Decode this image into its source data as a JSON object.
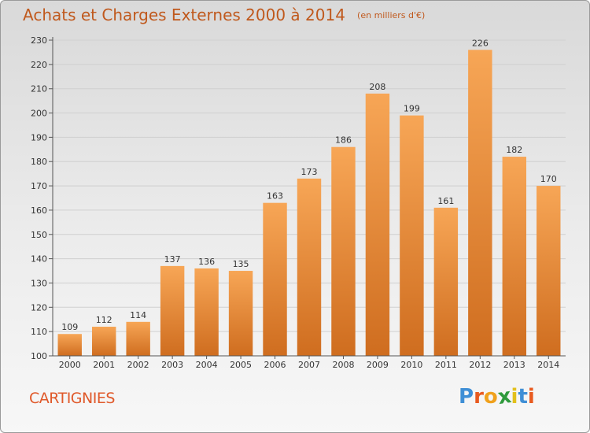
{
  "page": {
    "title": "Achats et Charges Externes 2000 à 2014",
    "subtitle": "(en milliers d'€)",
    "place": "CARTIGNIES",
    "logo": [
      "P",
      "r",
      "o",
      "x",
      "i",
      "t",
      "i"
    ]
  },
  "colors": {
    "bar_top": "#f7a656",
    "bar_bottom": "#cf6d1f",
    "title": "#c0591d",
    "place": "#e0592a",
    "logo": [
      "#3f8fd6",
      "#e85a1f",
      "#f0a11c",
      "#2f9a3c",
      "#e2c01c",
      "#3f8fd6",
      "#e85a1f"
    ]
  },
  "chart_data": {
    "type": "bar",
    "title": "Achats et Charges Externes 2000 à 2014",
    "subtitle": "(en milliers d'€)",
    "categories": [
      "2000",
      "2001",
      "2002",
      "2003",
      "2004",
      "2005",
      "2006",
      "2007",
      "2008",
      "2009",
      "2010",
      "2011",
      "2012",
      "2013",
      "2014"
    ],
    "values": [
      109,
      112,
      114,
      137,
      136,
      135,
      163,
      173,
      186,
      208,
      199,
      161,
      226,
      182,
      170
    ],
    "ylim": [
      100,
      230
    ],
    "yticks": [
      100,
      110,
      120,
      130,
      140,
      150,
      160,
      170,
      180,
      190,
      200,
      210,
      220,
      230
    ],
    "grid": true,
    "legend": "none"
  }
}
